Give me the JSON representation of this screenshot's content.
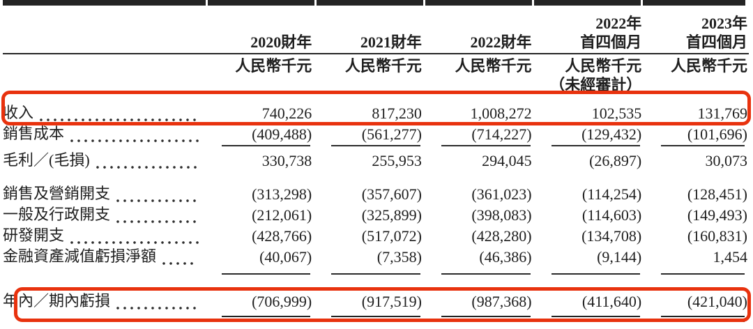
{
  "table": {
    "unit_label": "人民幣千元",
    "unaudited_label": "（未經審計）",
    "columns": [
      {
        "line1": "",
        "line2": "2020財年"
      },
      {
        "line1": "",
        "line2": "2021財年"
      },
      {
        "line1": "",
        "line2": "2022財年"
      },
      {
        "line1": "2022年",
        "line2": "首四個月"
      },
      {
        "line1": "2023年",
        "line2": "首四個月"
      }
    ],
    "rows": [
      {
        "label": "收入",
        "values": [
          "740,226",
          "817,230",
          "1,008,272",
          "102,535",
          "131,769"
        ],
        "highlighted": true
      },
      {
        "label": "銷售成本",
        "values": [
          "(409,488)",
          "(561,277)",
          "(714,227)",
          "(129,432)",
          "(101,696)"
        ],
        "highlighted": false
      },
      {
        "label": "毛利／(毛損)",
        "values": [
          "330,738",
          "255,953",
          "294,045",
          "(26,897)",
          "30,073"
        ],
        "highlighted": false
      },
      {
        "label": "銷售及營銷開支",
        "values": [
          "(313,298)",
          "(357,607)",
          "(361,023)",
          "(114,254)",
          "(128,451)"
        ],
        "highlighted": false
      },
      {
        "label": "一般及行政開支",
        "values": [
          "(212,061)",
          "(325,899)",
          "(398,083)",
          "(114,603)",
          "(149,493)"
        ],
        "highlighted": false
      },
      {
        "label": "研發開支",
        "values": [
          "(428,766)",
          "(517,072)",
          "(428,280)",
          "(134,708)",
          "(160,831)"
        ],
        "highlighted": false
      },
      {
        "label": "金融資產減值虧損淨額",
        "values": [
          "(40,067)",
          "(7,358)",
          "(46,386)",
          "(9,144)",
          "1,454"
        ],
        "highlighted": false
      },
      {
        "label": "年內／期內虧損",
        "values": [
          "(706,999)",
          "(917,519)",
          "(987,368)",
          "(411,640)",
          "(421,040)"
        ],
        "highlighted": true
      }
    ],
    "annotations": {
      "highlight_color": "#e8320e",
      "highlighted_rows": [
        "收入",
        "年內／期內虧損"
      ]
    }
  }
}
